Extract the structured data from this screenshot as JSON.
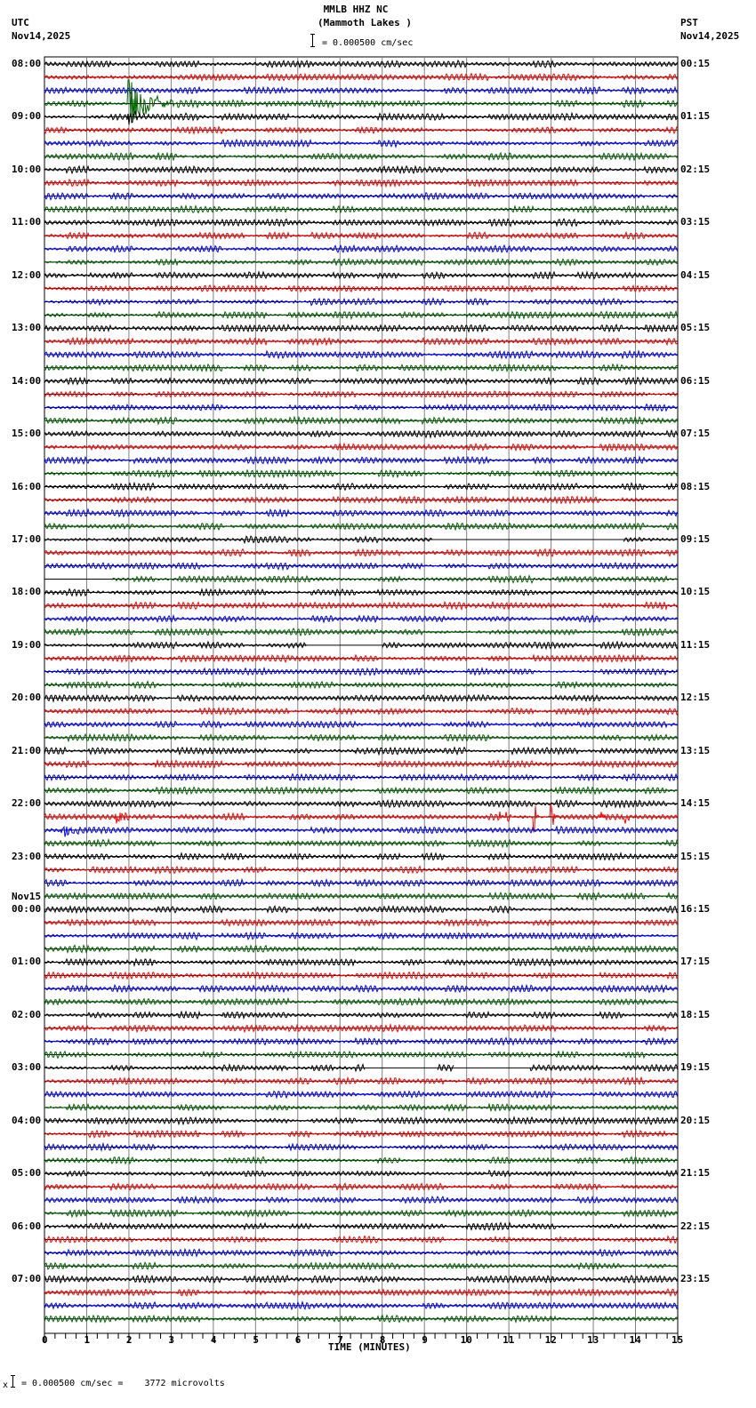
{
  "header": {
    "title": "MMLB HHZ NC",
    "subtitle": "(Mammoth Lakes )",
    "scale_text": "= 0.000500 cm/sec",
    "left_tz": "UTC",
    "left_date": "Nov14,2025",
    "right_tz": "PST",
    "right_date": "Nov14,2025"
  },
  "footer": {
    "scale_text": "= 0.000500 cm/sec =    3772 microvolts",
    "x_axis_title": "TIME (MINUTES)"
  },
  "colors": {
    "trace_cycle": [
      "#000000",
      "#ff0000",
      "#0000ff",
      "#006400"
    ],
    "grid": "#808080"
  },
  "chart_data": {
    "type": "line",
    "title": "MMLB HHZ NC (Mammoth Lakes )",
    "xlabel": "TIME (MINUTES)",
    "ylabel": "",
    "x_ticks": [
      0,
      1,
      2,
      3,
      4,
      5,
      6,
      7,
      8,
      9,
      10,
      11,
      12,
      13,
      14,
      15
    ],
    "xlim": [
      0,
      15
    ],
    "rows_per_hour": 4,
    "row_minutes": 15,
    "left_labels": [
      {
        "row": 0,
        "text": "08:00"
      },
      {
        "row": 4,
        "text": "09:00"
      },
      {
        "row": 8,
        "text": "10:00"
      },
      {
        "row": 12,
        "text": "11:00"
      },
      {
        "row": 16,
        "text": "12:00"
      },
      {
        "row": 20,
        "text": "13:00"
      },
      {
        "row": 24,
        "text": "14:00"
      },
      {
        "row": 28,
        "text": "15:00"
      },
      {
        "row": 32,
        "text": "16:00"
      },
      {
        "row": 36,
        "text": "17:00"
      },
      {
        "row": 40,
        "text": "18:00"
      },
      {
        "row": 44,
        "text": "19:00"
      },
      {
        "row": 48,
        "text": "20:00"
      },
      {
        "row": 52,
        "text": "21:00"
      },
      {
        "row": 56,
        "text": "22:00"
      },
      {
        "row": 60,
        "text": "23:00"
      },
      {
        "row": 64,
        "text": "00:00",
        "date": "Nov15"
      },
      {
        "row": 68,
        "text": "01:00"
      },
      {
        "row": 72,
        "text": "02:00"
      },
      {
        "row": 76,
        "text": "03:00"
      },
      {
        "row": 80,
        "text": "04:00"
      },
      {
        "row": 84,
        "text": "05:00"
      },
      {
        "row": 88,
        "text": "06:00"
      },
      {
        "row": 92,
        "text": "07:00"
      }
    ],
    "right_labels": [
      {
        "row": 0,
        "text": "00:15"
      },
      {
        "row": 4,
        "text": "01:15"
      },
      {
        "row": 8,
        "text": "02:15"
      },
      {
        "row": 12,
        "text": "03:15"
      },
      {
        "row": 16,
        "text": "04:15"
      },
      {
        "row": 20,
        "text": "05:15"
      },
      {
        "row": 24,
        "text": "06:15"
      },
      {
        "row": 28,
        "text": "07:15"
      },
      {
        "row": 32,
        "text": "08:15"
      },
      {
        "row": 36,
        "text": "09:15"
      },
      {
        "row": 40,
        "text": "10:15"
      },
      {
        "row": 44,
        "text": "11:15"
      },
      {
        "row": 48,
        "text": "12:15"
      },
      {
        "row": 52,
        "text": "13:15"
      },
      {
        "row": 56,
        "text": "14:15"
      },
      {
        "row": 60,
        "text": "15:15"
      },
      {
        "row": 64,
        "text": "16:15"
      },
      {
        "row": 68,
        "text": "17:15"
      },
      {
        "row": 72,
        "text": "18:15"
      },
      {
        "row": 76,
        "text": "19:15"
      },
      {
        "row": 80,
        "text": "20:15"
      },
      {
        "row": 84,
        "text": "21:15"
      },
      {
        "row": 88,
        "text": "22:15"
      },
      {
        "row": 92,
        "text": "23:15"
      }
    ],
    "total_rows": 96,
    "events": [
      {
        "row": 3,
        "minute": 2.0,
        "amp": 28,
        "dur": 1.2,
        "note": "local event (green 08:45)"
      },
      {
        "row": 4,
        "minute": 2.0,
        "amp": 10,
        "dur": 0.4
      },
      {
        "row": 57,
        "minute": 1.7,
        "amp": 12,
        "dur": 0.4
      },
      {
        "row": 58,
        "minute": 0.4,
        "amp": 11,
        "dur": 0.6
      },
      {
        "row": 57,
        "minute": 10.8,
        "amp": 10,
        "dur": 0.4
      },
      {
        "row": 57,
        "minute": 11.6,
        "amp": 22,
        "dur": 0.15
      },
      {
        "row": 57,
        "minute": 12.0,
        "amp": 20,
        "dur": 0.15
      },
      {
        "row": 57,
        "minute": 13.2,
        "amp": 10,
        "dur": 0.15
      },
      {
        "row": 57,
        "minute": 13.7,
        "amp": 14,
        "dur": 0.2
      }
    ],
    "gaps": [
      {
        "row": 36,
        "start": 9.2,
        "end": 13.7
      },
      {
        "row": 39,
        "start": 0.0,
        "end": 1.6
      },
      {
        "row": 44,
        "start": 6.2,
        "end": 8.0
      },
      {
        "row": 76,
        "start": 7.6,
        "end": 9.3
      },
      {
        "row": 76,
        "start": 9.7,
        "end": 11.5
      }
    ]
  }
}
